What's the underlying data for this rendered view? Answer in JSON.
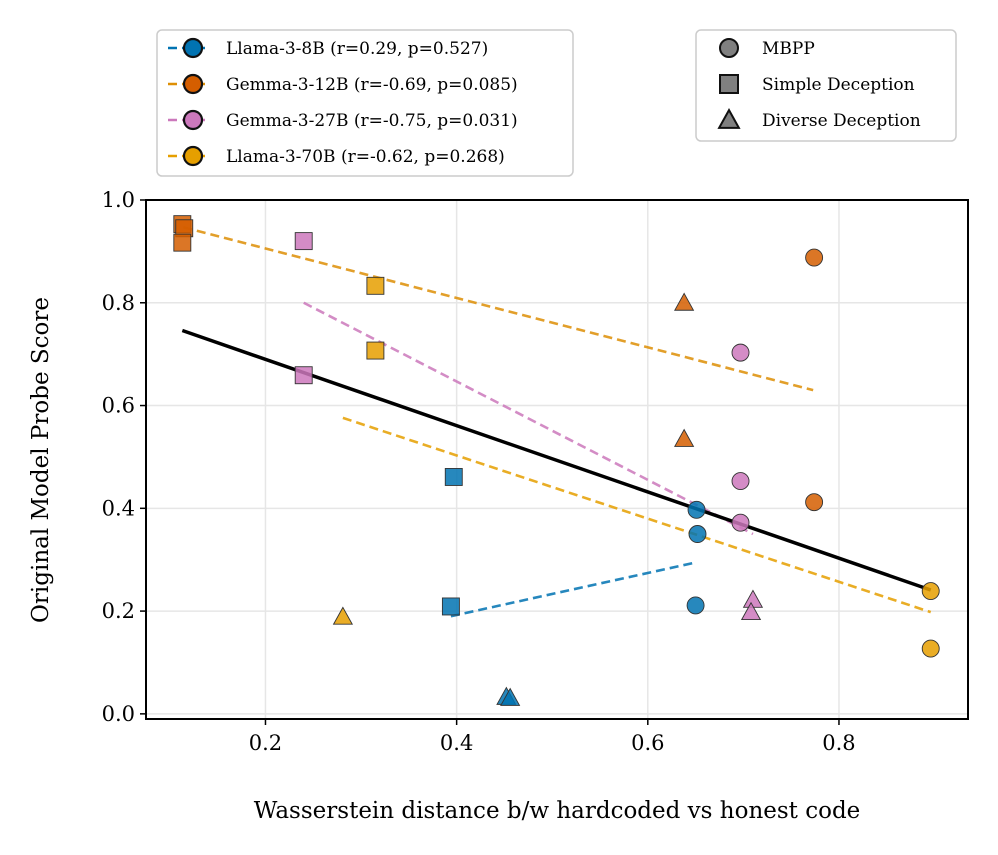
{
  "chart_data": {
    "type": "scatter",
    "xlabel": "Wasserstein distance b/w hardcoded vs honest code",
    "ylabel": "Original Model Probe Score",
    "xlim": [
      0.075,
      0.935
    ],
    "ylim": [
      -0.01,
      1.0
    ],
    "xticks": [
      0.2,
      0.4,
      0.6,
      0.8
    ],
    "yticks": [
      0.0,
      0.2,
      0.4,
      0.6,
      0.8,
      1.0
    ],
    "xtick_labels": [
      "0.2",
      "0.4",
      "0.6",
      "0.8"
    ],
    "ytick_labels": [
      "0.0",
      "0.2",
      "0.4",
      "0.6",
      "0.8",
      "1.0"
    ],
    "grid": true,
    "series": [
      {
        "name": "Llama-3-8B",
        "label": "Llama-3-8B (r=0.29, p=0.527)",
        "color": "#0173b2",
        "fit": [
          [
            0.394,
            0.19
          ],
          [
            0.651,
            0.295
          ]
        ],
        "points": [
          {
            "dataset": "MBPP",
            "x": 0.651,
            "y": 0.397
          },
          {
            "dataset": "MBPP",
            "x": 0.652,
            "y": 0.35
          },
          {
            "dataset": "MBPP",
            "x": 0.65,
            "y": 0.211
          },
          {
            "dataset": "Simple Deception",
            "x": 0.397,
            "y": 0.461
          },
          {
            "dataset": "Simple Deception",
            "x": 0.394,
            "y": 0.209
          },
          {
            "dataset": "Diverse Deception",
            "x": 0.452,
            "y": 0.033
          },
          {
            "dataset": "Diverse Deception",
            "x": 0.456,
            "y": 0.031
          }
        ]
      },
      {
        "name": "Gemma-3-12B",
        "label": "Gemma-3-12B (r=-0.69, p=0.085)",
        "color": "#de8f05",
        "marker_color": "#d55e00",
        "fit": [
          [
            0.114,
            0.947
          ],
          [
            0.773,
            0.63
          ]
        ],
        "points": [
          {
            "dataset": "MBPP",
            "x": 0.774,
            "y": 0.888
          },
          {
            "dataset": "MBPP",
            "x": 0.774,
            "y": 0.412
          },
          {
            "dataset": "Simple Deception",
            "x": 0.113,
            "y": 0.953
          },
          {
            "dataset": "Simple Deception",
            "x": 0.115,
            "y": 0.945
          },
          {
            "dataset": "Simple Deception",
            "x": 0.113,
            "y": 0.917
          },
          {
            "dataset": "Diverse Deception",
            "x": 0.638,
            "y": 0.8
          },
          {
            "dataset": "Diverse Deception",
            "x": 0.638,
            "y": 0.535
          }
        ]
      },
      {
        "name": "Gemma-3-27B",
        "label": "Gemma-3-27B (r=-0.75, p=0.031)",
        "color": "#cc78bc",
        "fit": [
          [
            0.24,
            0.8
          ],
          [
            0.71,
            0.35
          ]
        ],
        "points": [
          {
            "dataset": "MBPP",
            "x": 0.697,
            "y": 0.703
          },
          {
            "dataset": "MBPP",
            "x": 0.697,
            "y": 0.453
          },
          {
            "dataset": "MBPP",
            "x": 0.697,
            "y": 0.372
          },
          {
            "dataset": "Simple Deception",
            "x": 0.24,
            "y": 0.92
          },
          {
            "dataset": "Simple Deception",
            "x": 0.24,
            "y": 0.659
          },
          {
            "dataset": "Diverse Deception",
            "x": 0.71,
            "y": 0.222
          },
          {
            "dataset": "Diverse Deception",
            "x": 0.708,
            "y": 0.198
          }
        ]
      },
      {
        "name": "Llama-3-70B",
        "label": "Llama-3-70B (r=-0.62, p=0.268)",
        "color": "#e69f00",
        "marker_color": "#e69f00",
        "fit": [
          [
            0.281,
            0.576
          ],
          [
            0.896,
            0.198
          ]
        ],
        "points": [
          {
            "dataset": "MBPP",
            "x": 0.896,
            "y": 0.239
          },
          {
            "dataset": "MBPP",
            "x": 0.896,
            "y": 0.127
          },
          {
            "dataset": "Simple Deception",
            "x": 0.315,
            "y": 0.833
          },
          {
            "dataset": "Simple Deception",
            "x": 0.315,
            "y": 0.707
          },
          {
            "dataset": "Diverse Deception",
            "x": 0.281,
            "y": 0.189
          }
        ]
      }
    ],
    "overall_fit": {
      "color": "#000000",
      "line": [
        [
          0.113,
          0.746
        ],
        [
          0.896,
          0.241
        ]
      ]
    },
    "marker_legend": [
      {
        "name": "MBPP",
        "shape": "circle"
      },
      {
        "name": "Simple Deception",
        "shape": "square"
      },
      {
        "name": "Diverse Deception",
        "shape": "triangle"
      }
    ]
  }
}
